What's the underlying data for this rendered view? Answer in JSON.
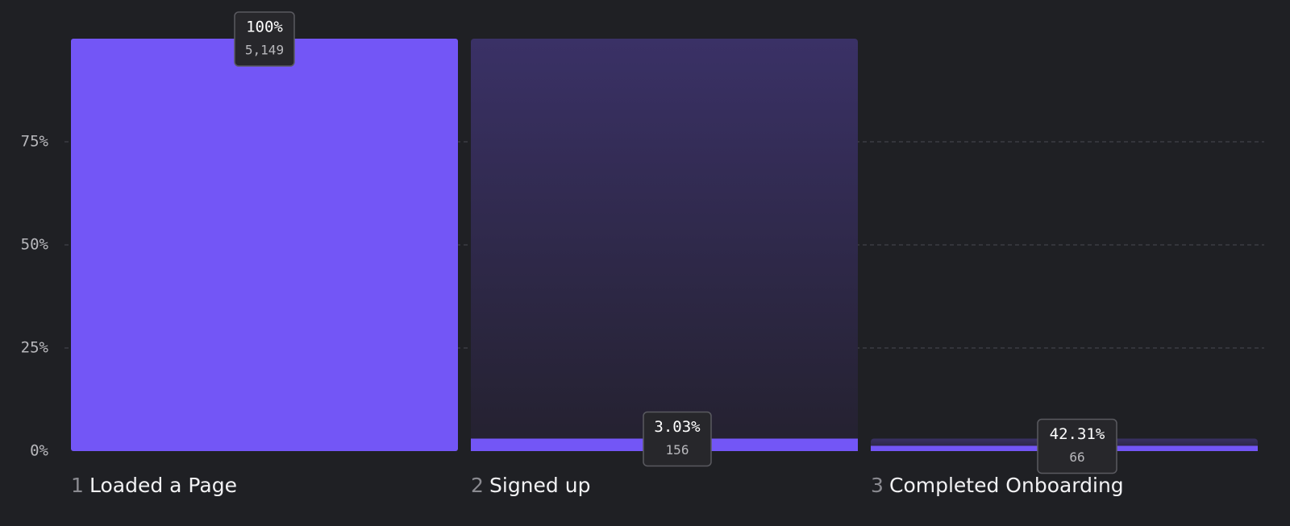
{
  "chart_data": {
    "type": "funnel",
    "steps": [
      1,
      2,
      3
    ],
    "categories": [
      "Loaded a Page",
      "Signed up",
      "Completed Onboarding"
    ],
    "values": [
      100,
      3.03,
      1.28
    ],
    "conversion_labels": [
      "100%",
      "3.03%",
      "42.31%"
    ],
    "counts": [
      {
        "value": 5149,
        "label": "5,149"
      },
      {
        "value": 156,
        "label": "156"
      },
      {
        "value": 66,
        "label": "66"
      }
    ],
    "color": "#7356f6",
    "ylim": [
      0,
      100
    ],
    "yticks": [
      {
        "value": 0,
        "label": "0%"
      },
      {
        "value": 25,
        "label": "25%"
      },
      {
        "value": 50,
        "label": "50%"
      },
      {
        "value": 75,
        "label": "75%"
      }
    ],
    "grid": true
  }
}
